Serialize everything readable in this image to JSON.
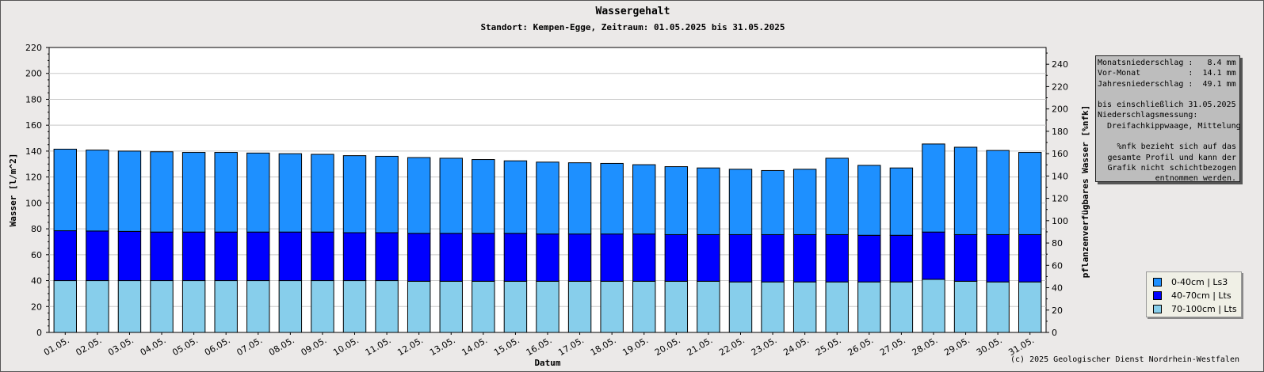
{
  "chart_data": {
    "type": "bar",
    "stacked": true,
    "title": "Wassergehalt",
    "subtitle": "Standort: Kempen-Egge, Zeitraum: 01.05.2025 bis 31.05.2025",
    "xlabel": "Datum",
    "ylabel": "Wasser [l/m^2]",
    "ylabel_right": "pflanzenverfügbares Wasser [%nfk]",
    "ylim": [
      0,
      220
    ],
    "yticks": [
      0,
      20,
      40,
      60,
      80,
      100,
      120,
      140,
      160,
      180,
      200,
      220
    ],
    "ylim_right": [
      0,
      255
    ],
    "yticks_right": [
      0,
      20,
      40,
      60,
      80,
      100,
      120,
      140,
      160,
      180,
      200,
      220,
      240
    ],
    "grid": true,
    "categories": [
      "01.05.",
      "02.05.",
      "03.05.",
      "04.05.",
      "05.05.",
      "06.05.",
      "07.05.",
      "08.05.",
      "09.05.",
      "10.05.",
      "11.05.",
      "12.05.",
      "13.05.",
      "14.05.",
      "15.05.",
      "16.05.",
      "17.05.",
      "18.05.",
      "19.05.",
      "20.05.",
      "21.05.",
      "22.05.",
      "23.05.",
      "24.05.",
      "25.05.",
      "26.05.",
      "27.05.",
      "28.05.",
      "29.05.",
      "30.05.",
      "31.05."
    ],
    "series": [
      {
        "name": "70-100cm | Lts",
        "color": "#87ceeb",
        "values": [
          40,
          40,
          40,
          40,
          40,
          40,
          40,
          40,
          40,
          40,
          40,
          39.5,
          39.5,
          39.5,
          39.5,
          39.5,
          39.5,
          39.5,
          39.5,
          39.5,
          39.5,
          39,
          39,
          39,
          39,
          39,
          39,
          41,
          39.5,
          39,
          39
        ]
      },
      {
        "name": "40-70cm | Lts",
        "color": "#0000ff",
        "values": [
          38.5,
          38.3,
          38,
          37.5,
          37.5,
          37.5,
          37.5,
          37.5,
          37.5,
          37,
          37,
          37,
          37,
          37,
          37,
          36.5,
          36.5,
          36.5,
          36.5,
          36,
          36,
          36.5,
          36.5,
          36.5,
          36.5,
          36,
          36,
          36.5,
          36,
          36.5,
          36.5
        ]
      },
      {
        "name": "0-40cm | Ls3",
        "color": "#1e90ff",
        "values": [
          63,
          62.5,
          62,
          62,
          61.5,
          61.5,
          61,
          60.5,
          60,
          59.5,
          59,
          58.5,
          58,
          57,
          56,
          55.5,
          55,
          54.5,
          53.5,
          52.5,
          51.5,
          50.5,
          49.5,
          50.5,
          59,
          54,
          52,
          68,
          67.5,
          65,
          63.5
        ]
      }
    ],
    "legend_position": "bottom-right"
  },
  "info": {
    "lines": [
      "Monatsniederschlag :   8.4 mm",
      "Vor-Monat          :  14.1 mm",
      "Jahresniederschlag :  49.1 mm",
      "",
      "bis einschließlich 31.05.2025",
      "Niederschlagsmessung:",
      "  Dreifachkippwaage, Mittelung"
    ],
    "note": [
      "%nfk bezieht sich auf das",
      "gesamte Profil und kann der",
      "Grafik nicht schichtbezogen",
      "entnommen werden."
    ]
  },
  "footer": "(c) 2025 Geologischer Dienst Nordrhein-Westfalen"
}
